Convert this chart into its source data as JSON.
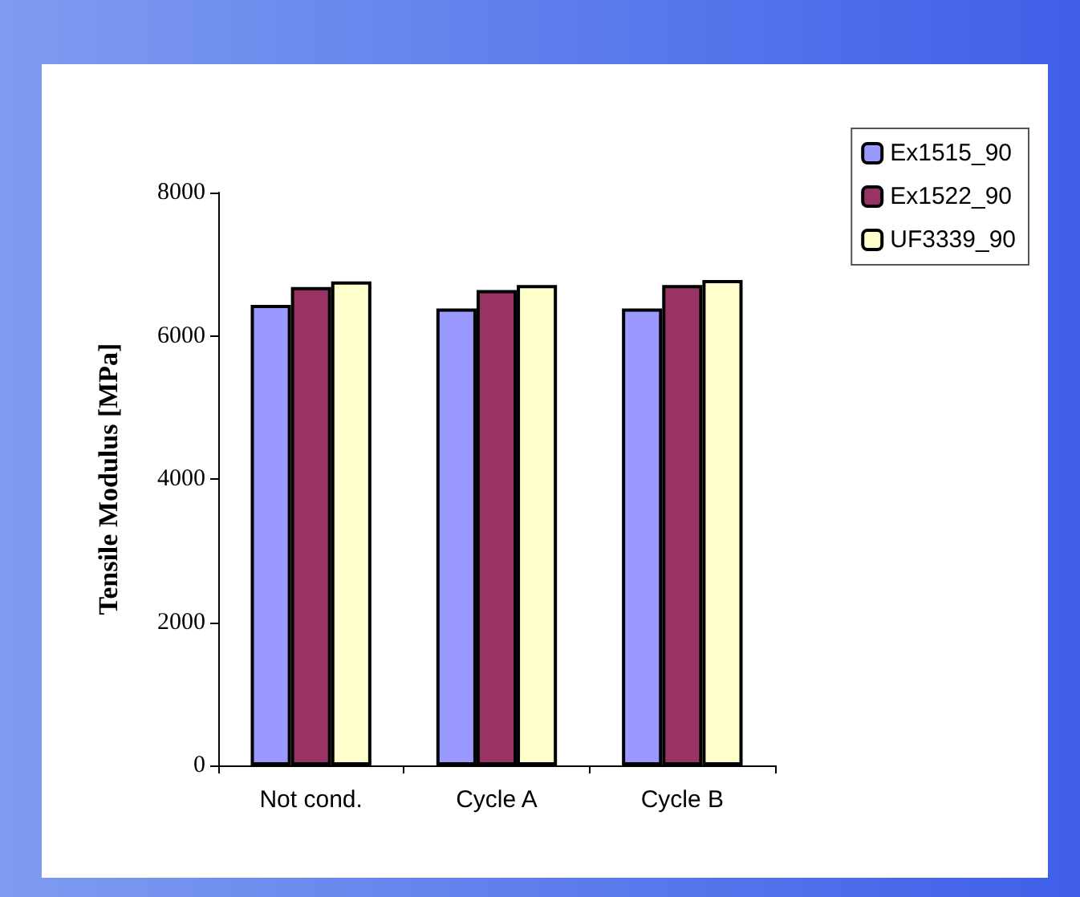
{
  "chart_data": {
    "type": "bar",
    "ylabel": "Tensile Modulus [MPa]",
    "categories": [
      "Not cond.",
      "Cycle A",
      "Cycle B"
    ],
    "series": [
      {
        "name": "Ex1515_90",
        "color": "#9999ff",
        "values": [
          6430,
          6380,
          6380
        ]
      },
      {
        "name": "Ex1522_90",
        "color": "#993366",
        "values": [
          6680,
          6640,
          6710
        ]
      },
      {
        "name": "UF3339_90",
        "color": "#ffffcc",
        "values": [
          6760,
          6710,
          6780
        ]
      }
    ],
    "ylim": [
      0,
      8000
    ],
    "yticks": [
      0,
      2000,
      4000,
      6000,
      8000
    ],
    "grid": false,
    "legend": "top right"
  }
}
